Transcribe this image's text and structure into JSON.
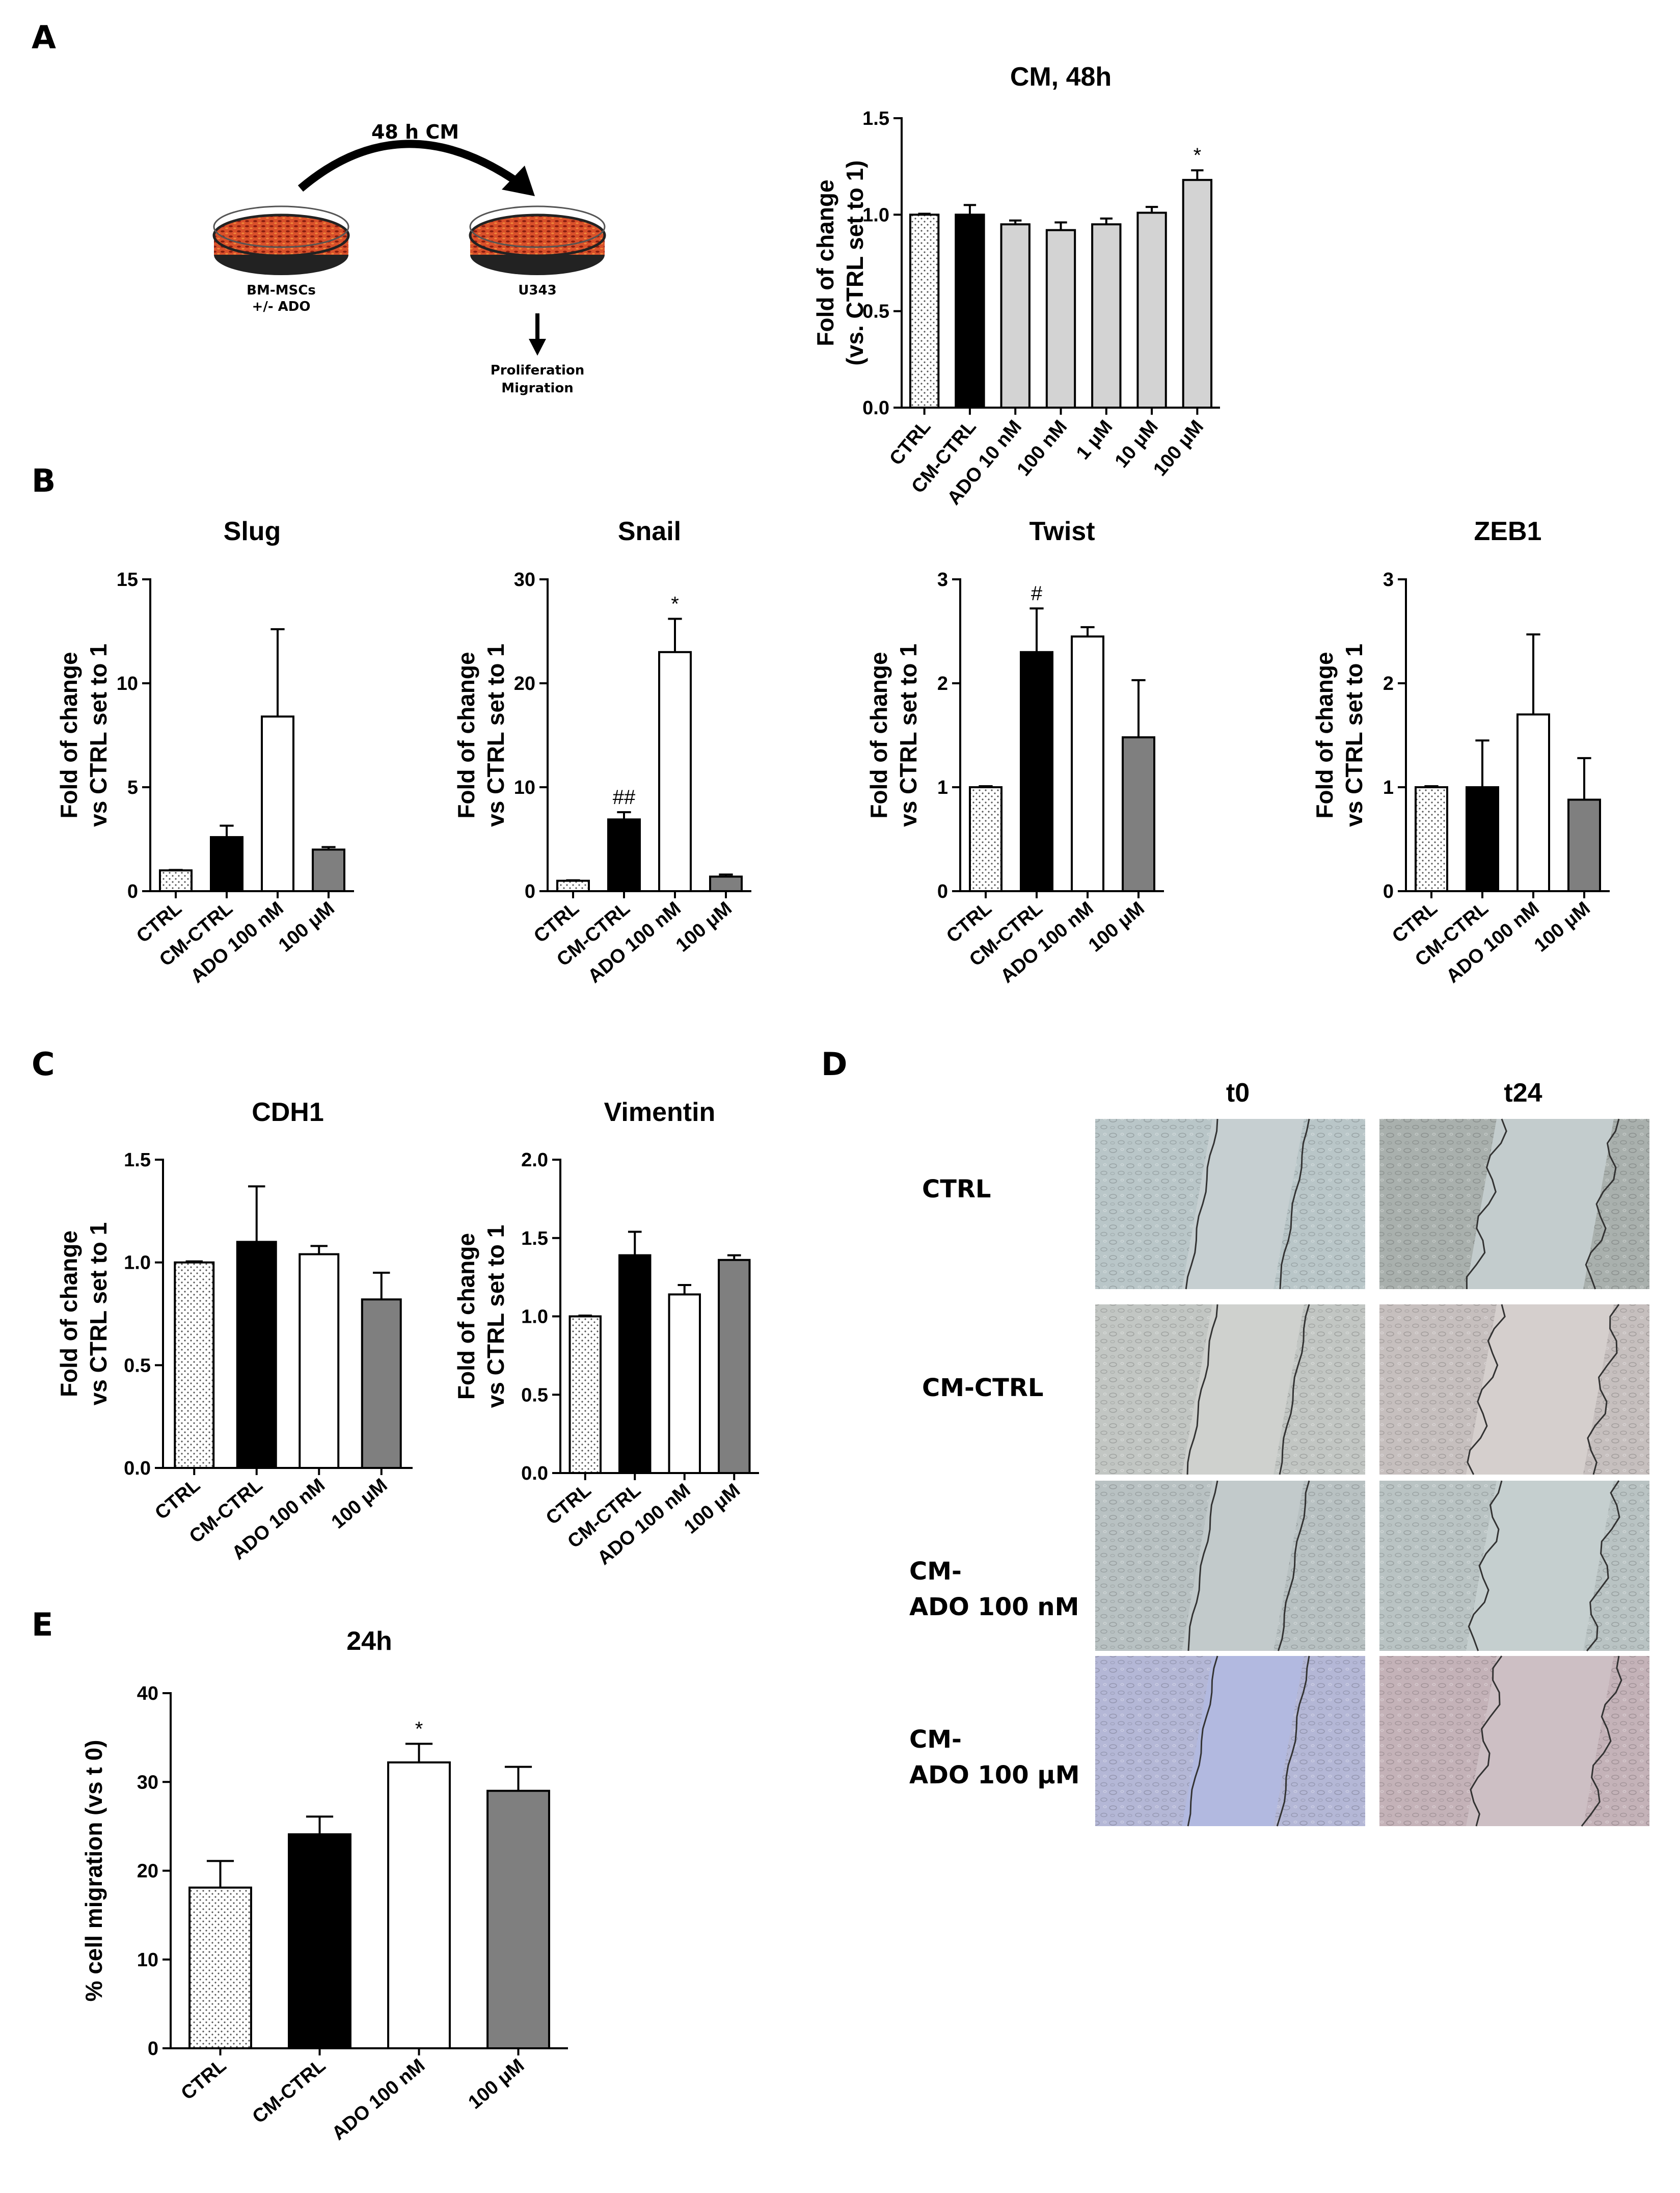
{
  "panel_letters": {
    "a": "A",
    "b": "B",
    "c": "C",
    "d": "D",
    "e": "E"
  },
  "schematic": {
    "arrow_label": "48 h CM",
    "left_dish_label_1": "BM-MSCs",
    "left_dish_label_2": "+/- ADO",
    "right_dish_label": "U343",
    "readout_1": "Proliferation",
    "readout_2": "Migration",
    "dish_color": "#d9502a"
  },
  "colors": {
    "ctrl_fill": "#ffffff",
    "black": "#000000",
    "white": "#ffffff",
    "grey": "#7f7f7f",
    "lightgrey": "#d3d3d3"
  },
  "chart_data": [
    {
      "id": "A",
      "type": "bar",
      "title": "CM, 48h",
      "ylabel": [
        "Fold of change",
        "(vs. CTRL set to 1)"
      ],
      "categories": [
        "CTRL",
        "CM-CTRL",
        "ADO 10 nM",
        "100 nM",
        "1 μM",
        "10 μM",
        "100 μM"
      ],
      "values": [
        1.0,
        1.0,
        0.95,
        0.92,
        0.95,
        1.01,
        1.18
      ],
      "errors": [
        0.005,
        0.05,
        0.02,
        0.04,
        0.03,
        0.03,
        0.05
      ],
      "fills": [
        "dots",
        "black",
        "lightgrey",
        "lightgrey",
        "lightgrey",
        "lightgrey",
        "lightgrey"
      ],
      "annotations": [
        "",
        "",
        "",
        "",
        "",
        "",
        "*"
      ],
      "ylim": [
        0,
        1.5
      ],
      "yticks": [
        "0.0",
        "0.5",
        "1.0",
        "1.5"
      ]
    },
    {
      "id": "B1",
      "type": "bar",
      "title": "Slug",
      "ylabel": [
        "Fold of change",
        "vs CTRL set to 1"
      ],
      "categories": [
        "CTRL",
        "CM-CTRL",
        "ADO 100 nM",
        "100 μM"
      ],
      "values": [
        1.0,
        2.6,
        8.4,
        2.0
      ],
      "errors": [
        0.02,
        0.55,
        4.2,
        0.12
      ],
      "fills": [
        "dots",
        "black",
        "white",
        "grey"
      ],
      "annotations": [
        "",
        "",
        "",
        ""
      ],
      "ylim": [
        0,
        15
      ],
      "yticks": [
        "0",
        "5",
        "10",
        "15"
      ]
    },
    {
      "id": "B2",
      "type": "bar",
      "title": "Snail",
      "ylabel": [
        "Fold of change",
        "vs CTRL set to 1"
      ],
      "categories": [
        "CTRL",
        "CM-CTRL",
        "ADO 100 nM",
        "100 μM"
      ],
      "values": [
        1.0,
        6.9,
        23.0,
        1.4
      ],
      "errors": [
        0.05,
        0.7,
        3.2,
        0.2
      ],
      "fills": [
        "dots",
        "black",
        "white",
        "grey"
      ],
      "annotations": [
        "",
        "##",
        "*",
        ""
      ],
      "ylim": [
        0,
        30
      ],
      "yticks": [
        "0",
        "10",
        "20",
        "30"
      ]
    },
    {
      "id": "B3",
      "type": "bar",
      "title": "Twist",
      "ylabel": [
        "Fold of change",
        "vs CTRL set to 1"
      ],
      "categories": [
        "CTRL",
        "CM-CTRL",
        "ADO 100 nM",
        "100 μM"
      ],
      "values": [
        1.0,
        2.3,
        2.45,
        1.48
      ],
      "errors": [
        0.01,
        0.42,
        0.09,
        0.55
      ],
      "fills": [
        "dots",
        "black",
        "white",
        "grey"
      ],
      "annotations": [
        "",
        "#",
        "",
        ""
      ],
      "ylim": [
        0,
        3
      ],
      "yticks": [
        "0",
        "1",
        "2",
        "3"
      ]
    },
    {
      "id": "B4",
      "type": "bar",
      "title": "ZEB1",
      "ylabel": [
        "Fold of change",
        "vs CTRL set to 1"
      ],
      "categories": [
        "CTRL",
        "CM-CTRL",
        "ADO 100 nM",
        "100 μM"
      ],
      "values": [
        1.0,
        1.0,
        1.7,
        0.88
      ],
      "errors": [
        0.01,
        0.45,
        0.77,
        0.4
      ],
      "fills": [
        "dots",
        "black",
        "white",
        "grey"
      ],
      "annotations": [
        "",
        "",
        "",
        ""
      ],
      "ylim": [
        0,
        3
      ],
      "yticks": [
        "0",
        "1",
        "2",
        "3"
      ]
    },
    {
      "id": "C1",
      "type": "bar",
      "title": "CDH1",
      "ylabel": [
        "Fold of change",
        "vs CTRL set to 1"
      ],
      "categories": [
        "CTRL",
        "CM-CTRL",
        "ADO 100 nM",
        "100 μM"
      ],
      "values": [
        1.0,
        1.1,
        1.04,
        0.82
      ],
      "errors": [
        0.005,
        0.27,
        0.04,
        0.13
      ],
      "fills": [
        "dots",
        "black",
        "white",
        "grey"
      ],
      "annotations": [
        "",
        "",
        "",
        ""
      ],
      "ylim": [
        0,
        1.5
      ],
      "yticks": [
        "0.0",
        "0.5",
        "1.0",
        "1.5"
      ]
    },
    {
      "id": "C2",
      "type": "bar",
      "title": "Vimentin",
      "ylabel": [
        "Fold of change",
        "vs CTRL set to 1"
      ],
      "categories": [
        "CTRL",
        "CM-CTRL",
        "ADO 100 nM",
        "100 μM"
      ],
      "values": [
        1.0,
        1.39,
        1.14,
        1.36
      ],
      "errors": [
        0.005,
        0.15,
        0.06,
        0.03
      ],
      "fills": [
        "dots",
        "black",
        "white",
        "grey"
      ],
      "annotations": [
        "",
        "",
        "",
        ""
      ],
      "ylim": [
        0,
        2.0
      ],
      "yticks": [
        "0.0",
        "0.5",
        "1.0",
        "1.5",
        "2.0"
      ]
    },
    {
      "id": "E",
      "type": "bar",
      "title": "24h",
      "ylabel": [
        "% cell migration (vs t 0)"
      ],
      "categories": [
        "CTRL",
        "CM-CTRL",
        "ADO 100 nM",
        "100 μM"
      ],
      "values": [
        18.1,
        24.1,
        32.2,
        29.0
      ],
      "errors": [
        3.0,
        2.0,
        2.1,
        2.7
      ],
      "fills": [
        "dots",
        "black",
        "white",
        "grey"
      ],
      "annotations": [
        "",
        "",
        "*",
        ""
      ],
      "ylim": [
        0,
        40
      ],
      "yticks": [
        "0",
        "10",
        "20",
        "30",
        "40"
      ]
    }
  ],
  "panel_d": {
    "col_labels": [
      "t0",
      "t24"
    ],
    "row_labels": [
      [
        "CTRL"
      ],
      [
        "CM-CTRL"
      ],
      [
        "CM-",
        "ADO 100 nM"
      ],
      [
        "CM-",
        "ADO 100 μM"
      ]
    ],
    "image_tints": [
      [
        "#b9c6c8",
        "#a9b0ad"
      ],
      [
        "#c2c6c3",
        "#c6bfbe"
      ],
      [
        "#b8c1c2",
        "#b9c3c3"
      ],
      [
        "#b4b7d6",
        "#c4b2b8"
      ]
    ],
    "gap_tints": [
      [
        "#c6cfd1",
        "#c3cccd"
      ],
      [
        "#cfd1ce",
        "#d5cfcd"
      ],
      [
        "#c2cacb",
        "#c5cfcf"
      ],
      [
        "#b2b9e0",
        "#cdbfc4"
      ]
    ]
  }
}
